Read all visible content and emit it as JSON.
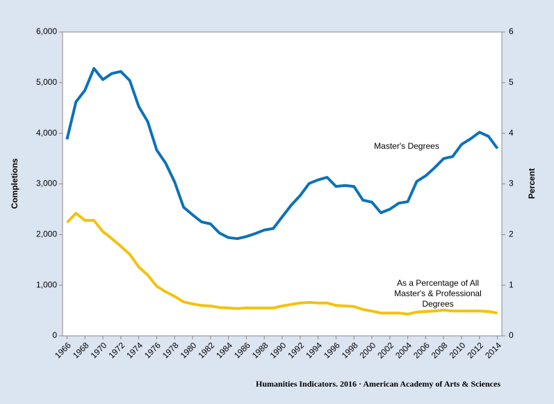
{
  "chart_data": {
    "type": "line",
    "y_label": "Completions",
    "y2_label": "Percent",
    "source": "Humanities Indicators. 2016 · American Academy of Arts & Sciences",
    "x": [
      1966,
      1967,
      1968,
      1969,
      1970,
      1971,
      1972,
      1973,
      1974,
      1975,
      1976,
      1977,
      1978,
      1979,
      1980,
      1981,
      1982,
      1983,
      1984,
      1985,
      1986,
      1987,
      1988,
      1989,
      1990,
      1991,
      1992,
      1993,
      1994,
      1995,
      1996,
      1997,
      1998,
      1999,
      2000,
      2001,
      2002,
      2003,
      2004,
      2005,
      2006,
      2007,
      2008,
      2009,
      2010,
      2011,
      2012,
      2013,
      2014
    ],
    "xlim": [
      1965.5,
      2014.5
    ],
    "xticks": [
      1966,
      1968,
      1970,
      1972,
      1974,
      1976,
      1978,
      1980,
      1982,
      1984,
      1986,
      1988,
      1990,
      1992,
      1994,
      1996,
      1998,
      2000,
      2002,
      2004,
      2006,
      2008,
      2010,
      2012,
      2014
    ],
    "ylim": [
      0,
      6000
    ],
    "yticks": [
      0,
      {
        "value": 1000,
        "label": "1,000"
      },
      {
        "value": 2000,
        "label": "2,000"
      },
      {
        "value": 3000,
        "label": "3,000"
      },
      {
        "value": 4000,
        "label": "4,000"
      },
      {
        "value": 5000,
        "label": "5,000"
      },
      {
        "value": 6000,
        "label": "6,000"
      }
    ],
    "y2lim": [
      0,
      6
    ],
    "y2ticks": [
      0,
      1,
      2,
      3,
      4,
      5,
      6
    ],
    "series": [
      {
        "name": "Master's Degrees",
        "color": "#0b72b9",
        "values": [
          3880,
          4620,
          4850,
          5280,
          5060,
          5180,
          5220,
          5040,
          4530,
          4230,
          3670,
          3410,
          3040,
          2540,
          2390,
          2250,
          2210,
          2030,
          1940,
          1920,
          1960,
          2020,
          2090,
          2120,
          2350,
          2580,
          2770,
          3010,
          3080,
          3130,
          2950,
          2970,
          2950,
          2680,
          2640,
          2430,
          2500,
          2620,
          2650,
          3050,
          3160,
          3320,
          3500,
          3540,
          3780,
          3890,
          4020,
          3940,
          3700
        ]
      },
      {
        "name": "As a Percentage of All Master's & Professional Degrees",
        "color": "#f4c20d",
        "axis": "y2",
        "values": [
          2.24,
          2.42,
          2.28,
          2.28,
          2.06,
          1.92,
          1.77,
          1.61,
          1.36,
          1.2,
          0.98,
          0.87,
          0.78,
          0.67,
          0.63,
          0.6,
          0.59,
          0.56,
          0.55,
          0.54,
          0.55,
          0.55,
          0.55,
          0.55,
          0.59,
          0.62,
          0.65,
          0.66,
          0.65,
          0.65,
          0.6,
          0.59,
          0.58,
          0.52,
          0.49,
          0.45,
          0.45,
          0.45,
          0.43,
          0.47,
          0.48,
          0.49,
          0.51,
          0.49,
          0.49,
          0.49,
          0.49,
          0.48,
          0.45
        ]
      }
    ]
  }
}
